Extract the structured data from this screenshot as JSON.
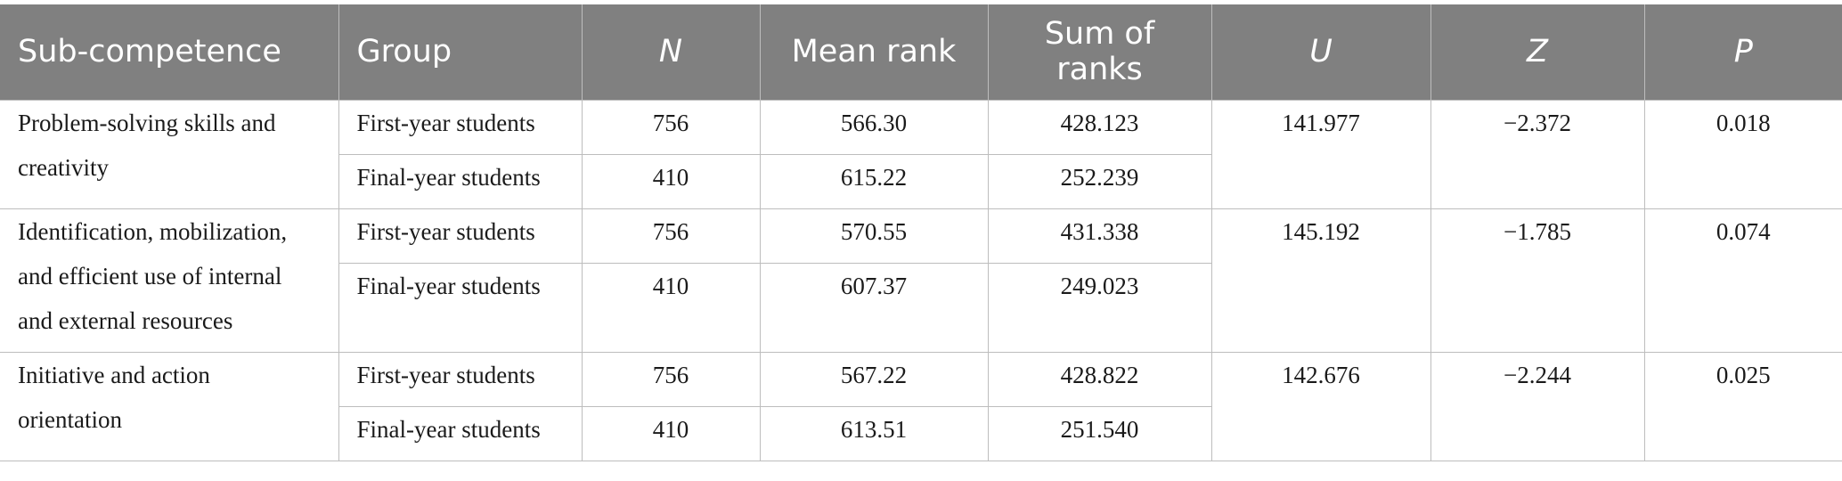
{
  "table": {
    "headers": {
      "sub_competence": "Sub-competence",
      "group": "Group",
      "n": "N",
      "mean_rank": "Mean rank",
      "sum_of_ranks_line1": "Sum of",
      "sum_of_ranks_line2": "ranks",
      "u": "U",
      "z": "Z",
      "p": "P"
    },
    "blocks": [
      {
        "sub_competence": "Problem-solving skills and creativity",
        "rows": [
          {
            "group": "First-year students",
            "n": "756",
            "mean_rank": "566.30",
            "sum_of_ranks": "428.123"
          },
          {
            "group": "Final-year students",
            "n": "410",
            "mean_rank": "615.22",
            "sum_of_ranks": "252.239"
          }
        ],
        "u": "141.977",
        "z": "−2.372",
        "p": "0.018"
      },
      {
        "sub_competence": "Identification, mobilization, and efficient use of internal and external resources",
        "rows": [
          {
            "group": "First-year students",
            "n": "756",
            "mean_rank": "570.55",
            "sum_of_ranks": "431.338"
          },
          {
            "group": "Final-year students",
            "n": "410",
            "mean_rank": "607.37",
            "sum_of_ranks": "249.023"
          }
        ],
        "u": "145.192",
        "z": "−1.785",
        "p": "0.074"
      },
      {
        "sub_competence": "Initiative and action orientation",
        "rows": [
          {
            "group": "First-year students",
            "n": "756",
            "mean_rank": "567.22",
            "sum_of_ranks": "428.822"
          },
          {
            "group": "Final-year students",
            "n": "410",
            "mean_rank": "613.51",
            "sum_of_ranks": "251.540"
          }
        ],
        "u": "142.676",
        "z": "−2.244",
        "p": "0.025"
      }
    ]
  }
}
